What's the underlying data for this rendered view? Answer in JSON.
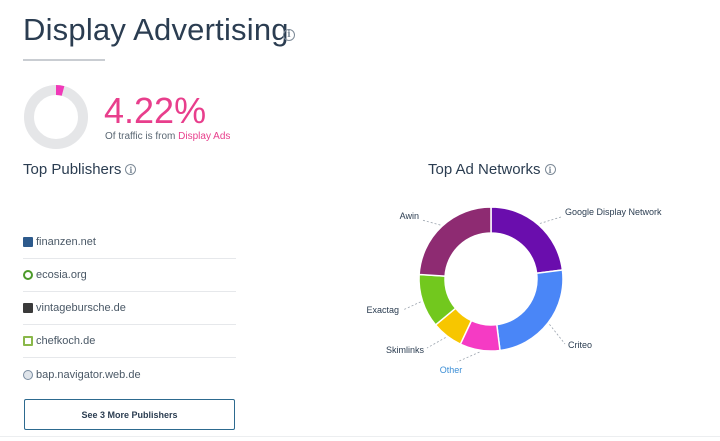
{
  "header": {
    "title": "Display Advertising",
    "info": "i"
  },
  "traffic": {
    "percent": "4.22%",
    "share": 0.0422,
    "note_prefix": "Of traffic is from ",
    "note_link": "Display Ads"
  },
  "top_publishers": {
    "title": "Top Publishers",
    "items": [
      {
        "label": "finanzen.net",
        "icon": "finanzen-favicon",
        "color": "#2d5a8c"
      },
      {
        "label": "ecosia.org",
        "icon": "ecosia-favicon",
        "color": "#4c9a2a"
      },
      {
        "label": "vintagebursche.de",
        "icon": "vintagebursche-favicon",
        "color": "#3a3a3a"
      },
      {
        "label": "chefkoch.de",
        "icon": "chefkoch-favicon",
        "color": "#8ab84a"
      },
      {
        "label": "bap.navigator.web.de",
        "icon": "web-de-favicon",
        "color": "#7a8ca0"
      }
    ],
    "more_button": "See 3 More Publishers"
  },
  "top_ad_networks": {
    "title": "Top Ad Networks",
    "chart_data": {
      "type": "pie",
      "series": [
        {
          "name": "Google Display Network",
          "value": 23,
          "color": "#6a0dad"
        },
        {
          "name": "Criteo",
          "value": 25,
          "color": "#4a86f7"
        },
        {
          "name": "Other",
          "value": 9,
          "color": "#f53bc4"
        },
        {
          "name": "Skimlinks",
          "value": 7,
          "color": "#f7c600"
        },
        {
          "name": "Exactag",
          "value": 12,
          "color": "#72c81e"
        },
        {
          "name": "Awin",
          "value": 24,
          "color": "#8e2b72"
        }
      ]
    }
  }
}
